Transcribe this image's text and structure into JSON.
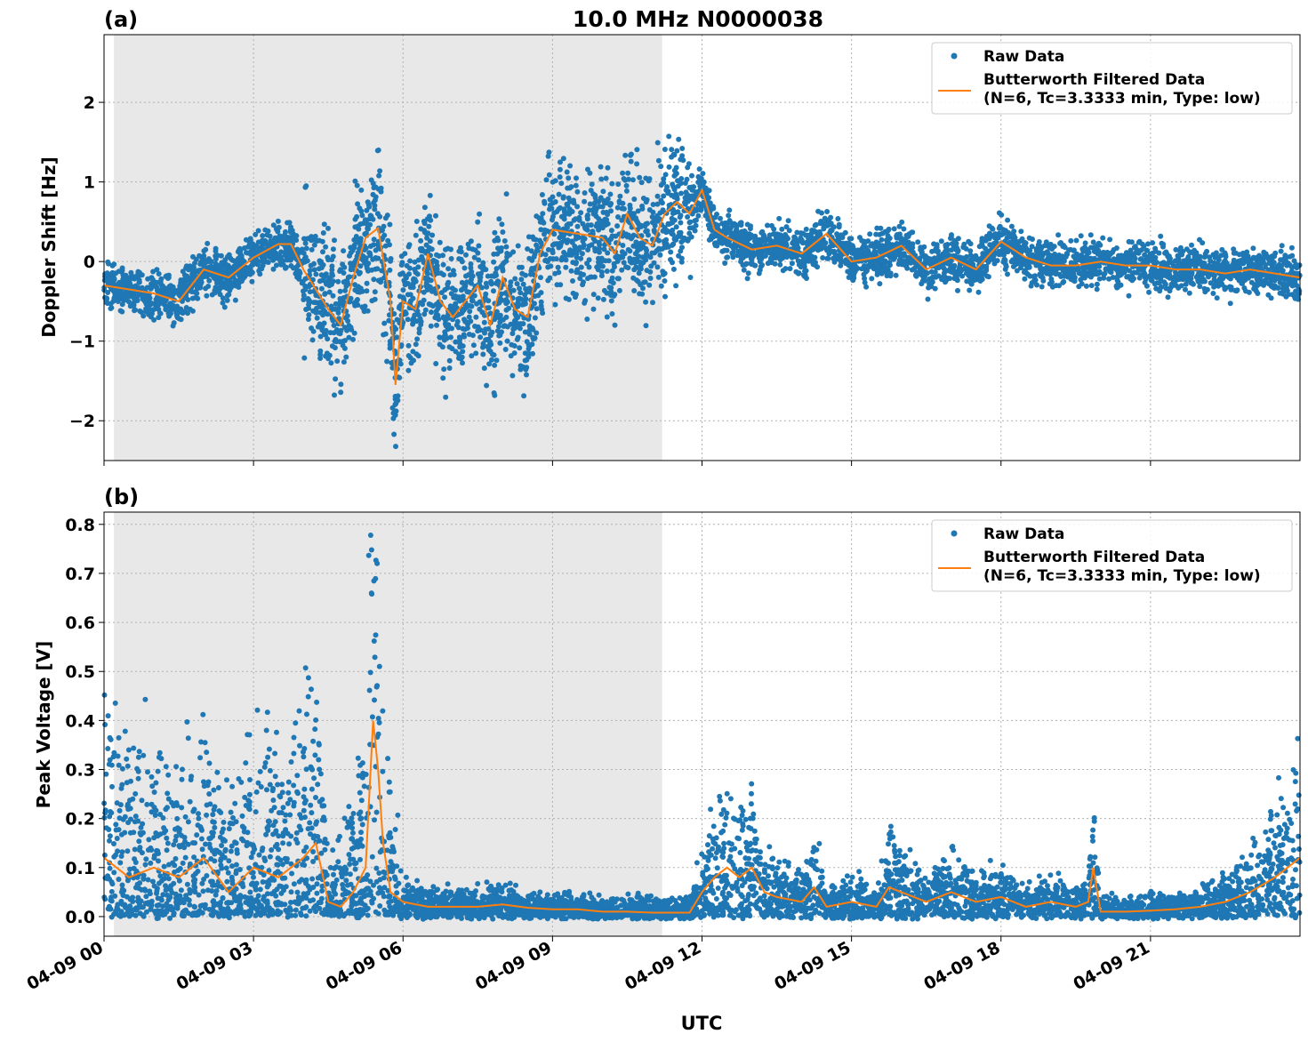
{
  "figure": {
    "title": "10.0 MHz N0000038",
    "xlabel": "UTC",
    "x_tick_labels": [
      "04-09 00",
      "04-09 03",
      "04-09 06",
      "04-09 09",
      "04-09 12",
      "04-09 15",
      "04-09 18",
      "04-09 21"
    ],
    "colors": {
      "raw": "#1f77b4",
      "filtered": "#ff7f0e",
      "shade": "#e8e8e8",
      "grid": "#b0b0b0"
    }
  },
  "legend": {
    "raw_label": "Raw Data",
    "filtered_label_line1": "Butterworth Filtered Data",
    "filtered_label_line2": "(N=6, Tc=3.3333 min, Type: low)"
  },
  "chart_data": [
    {
      "type": "scatter",
      "panel_label": "(a)",
      "ylabel": "Doppler Shift [Hz]",
      "x_unit": "hours UTC on 04-09",
      "xlim": [
        0,
        24
      ],
      "ylim": [
        -2.5,
        2.85
      ],
      "y_ticks": [
        -2,
        -1,
        0,
        1,
        2
      ],
      "y_tick_labels": [
        "−2",
        "−1",
        "0",
        "1",
        "2"
      ],
      "grid": true,
      "legend_position": "top-right",
      "shaded_interval_hours": [
        0.2,
        11.2
      ],
      "series": [
        {
          "name": "Butterworth Filtered Data",
          "kind": "line",
          "x": [
            0,
            0.5,
            1.0,
            1.5,
            2.0,
            2.5,
            3.0,
            3.5,
            3.75,
            4.0,
            4.5,
            4.75,
            5.0,
            5.25,
            5.5,
            5.75,
            5.85,
            6.0,
            6.25,
            6.5,
            6.75,
            7.0,
            7.25,
            7.5,
            7.75,
            8.0,
            8.25,
            8.5,
            8.75,
            9.0,
            9.5,
            10.0,
            10.25,
            10.5,
            10.75,
            11.0,
            11.25,
            11.5,
            11.75,
            12.0,
            12.25,
            12.5,
            13.0,
            13.5,
            14.0,
            14.5,
            15.0,
            15.5,
            16.0,
            16.5,
            17.0,
            17.5,
            18.0,
            18.5,
            19.0,
            19.5,
            20.0,
            20.5,
            21.0,
            21.5,
            22.0,
            22.5,
            23.0,
            23.5,
            24.0
          ],
          "y": [
            -0.3,
            -0.35,
            -0.4,
            -0.5,
            -0.1,
            -0.2,
            0.05,
            0.22,
            0.22,
            -0.1,
            -0.6,
            -0.8,
            -0.2,
            0.3,
            0.42,
            -0.5,
            -1.55,
            -0.5,
            -0.6,
            0.1,
            -0.5,
            -0.7,
            -0.5,
            -0.3,
            -0.8,
            -0.2,
            -0.6,
            -0.7,
            0.1,
            0.4,
            0.35,
            0.3,
            0.1,
            0.6,
            0.3,
            0.2,
            0.6,
            0.75,
            0.6,
            0.9,
            0.4,
            0.3,
            0.15,
            0.2,
            0.1,
            0.35,
            0.0,
            0.05,
            0.2,
            -0.1,
            0.05,
            -0.1,
            0.25,
            0.05,
            -0.05,
            -0.05,
            0.0,
            -0.05,
            -0.05,
            -0.1,
            -0.1,
            -0.15,
            -0.1,
            -0.15,
            -0.2
          ]
        }
      ]
    },
    {
      "type": "scatter",
      "panel_label": "(b)",
      "ylabel": "Peak Voltage [V]",
      "x_unit": "hours UTC on 04-09",
      "xlim": [
        0,
        24
      ],
      "ylim": [
        -0.04,
        0.825
      ],
      "y_ticks": [
        0.0,
        0.1,
        0.2,
        0.3,
        0.4,
        0.5,
        0.6,
        0.7,
        0.8
      ],
      "y_tick_labels": [
        "0.0",
        "0.1",
        "0.2",
        "0.3",
        "0.4",
        "0.5",
        "0.6",
        "0.7",
        "0.8"
      ],
      "grid": true,
      "legend_position": "top-right",
      "shaded_interval_hours": [
        0.2,
        11.2
      ],
      "series": [
        {
          "name": "Butterworth Filtered Data",
          "kind": "line",
          "x": [
            0,
            0.5,
            1.0,
            1.5,
            2.0,
            2.5,
            3.0,
            3.5,
            4.0,
            4.25,
            4.5,
            4.75,
            5.0,
            5.25,
            5.4,
            5.5,
            5.6,
            5.75,
            6.0,
            6.5,
            7.0,
            7.5,
            8.0,
            8.5,
            9.0,
            9.5,
            10.0,
            10.5,
            11.0,
            11.5,
            11.75,
            12.0,
            12.25,
            12.5,
            12.75,
            13.0,
            13.25,
            13.5,
            14.0,
            14.25,
            14.5,
            15.0,
            15.5,
            15.75,
            16.0,
            16.5,
            17.0,
            17.5,
            18.0,
            18.5,
            19.0,
            19.5,
            19.75,
            19.85,
            20.0,
            20.5,
            21.0,
            21.5,
            22.0,
            22.5,
            23.0,
            23.5,
            24.0
          ],
          "y": [
            0.12,
            0.08,
            0.1,
            0.08,
            0.12,
            0.05,
            0.1,
            0.08,
            0.12,
            0.15,
            0.03,
            0.02,
            0.05,
            0.1,
            0.4,
            0.3,
            0.15,
            0.05,
            0.03,
            0.02,
            0.02,
            0.02,
            0.025,
            0.018,
            0.015,
            0.015,
            0.01,
            0.01,
            0.008,
            0.008,
            0.008,
            0.05,
            0.08,
            0.1,
            0.08,
            0.1,
            0.05,
            0.04,
            0.03,
            0.06,
            0.02,
            0.03,
            0.02,
            0.06,
            0.05,
            0.03,
            0.05,
            0.03,
            0.04,
            0.02,
            0.03,
            0.02,
            0.03,
            0.1,
            0.01,
            0.01,
            0.012,
            0.015,
            0.02,
            0.03,
            0.05,
            0.08,
            0.12
          ]
        }
      ]
    }
  ]
}
